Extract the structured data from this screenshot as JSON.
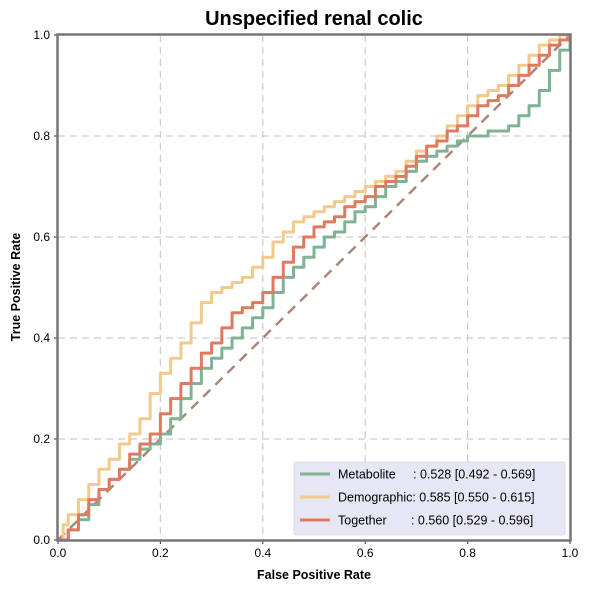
{
  "chart_data": {
    "type": "line",
    "title": "Unspecified renal colic",
    "xlabel": "False Positive Rate",
    "ylabel": "True Positive Rate",
    "xlim": [
      0,
      1
    ],
    "ylim": [
      0,
      1
    ],
    "xticks": [
      "0.0",
      "0.2",
      "0.4",
      "0.6",
      "0.8",
      "1.0"
    ],
    "yticks": [
      "0.0",
      "0.2",
      "0.4",
      "0.6",
      "0.8",
      "1.0"
    ],
    "grid": true,
    "legend_position": "bottom-right",
    "reference_line": {
      "color": "#A9877A",
      "style": "dashed",
      "x": [
        0,
        1
      ],
      "y": [
        0,
        1
      ]
    },
    "series": [
      {
        "name": "Metabolite",
        "legend_label": "Metabolite     : 0.528 [0.492 - 0.569]",
        "color": "#7FB394",
        "x": [
          0,
          0.02,
          0.04,
          0.06,
          0.08,
          0.1,
          0.12,
          0.14,
          0.16,
          0.18,
          0.2,
          0.22,
          0.24,
          0.26,
          0.28,
          0.3,
          0.32,
          0.34,
          0.36,
          0.38,
          0.4,
          0.42,
          0.44,
          0.46,
          0.48,
          0.5,
          0.52,
          0.54,
          0.56,
          0.58,
          0.6,
          0.62,
          0.64,
          0.66,
          0.68,
          0.7,
          0.72,
          0.74,
          0.76,
          0.78,
          0.8,
          0.82,
          0.84,
          0.86,
          0.88,
          0.9,
          0.92,
          0.94,
          0.96,
          0.98,
          1.0
        ],
        "y": [
          0,
          0.02,
          0.04,
          0.07,
          0.1,
          0.12,
          0.14,
          0.16,
          0.18,
          0.19,
          0.21,
          0.24,
          0.28,
          0.31,
          0.34,
          0.36,
          0.38,
          0.4,
          0.42,
          0.44,
          0.46,
          0.49,
          0.52,
          0.54,
          0.56,
          0.58,
          0.6,
          0.61,
          0.63,
          0.65,
          0.66,
          0.68,
          0.7,
          0.71,
          0.73,
          0.75,
          0.76,
          0.77,
          0.78,
          0.79,
          0.8,
          0.8,
          0.81,
          0.81,
          0.82,
          0.84,
          0.86,
          0.89,
          0.93,
          0.97,
          1.0
        ]
      },
      {
        "name": "Demographic",
        "legend_label": "Demographic: 0.585 [0.550 - 0.615]",
        "color": "#F2CA8B",
        "x": [
          0,
          0.01,
          0.02,
          0.04,
          0.06,
          0.08,
          0.1,
          0.12,
          0.14,
          0.16,
          0.18,
          0.2,
          0.22,
          0.24,
          0.26,
          0.28,
          0.3,
          0.32,
          0.34,
          0.36,
          0.38,
          0.4,
          0.42,
          0.44,
          0.46,
          0.48,
          0.5,
          0.52,
          0.54,
          0.56,
          0.58,
          0.6,
          0.62,
          0.64,
          0.66,
          0.68,
          0.7,
          0.72,
          0.74,
          0.76,
          0.78,
          0.8,
          0.82,
          0.84,
          0.86,
          0.88,
          0.9,
          0.92,
          0.94,
          0.96,
          0.98,
          1.0
        ],
        "y": [
          0,
          0.03,
          0.05,
          0.08,
          0.11,
          0.14,
          0.16,
          0.19,
          0.21,
          0.24,
          0.29,
          0.33,
          0.36,
          0.39,
          0.43,
          0.47,
          0.49,
          0.5,
          0.51,
          0.52,
          0.54,
          0.56,
          0.59,
          0.61,
          0.63,
          0.64,
          0.65,
          0.66,
          0.67,
          0.68,
          0.69,
          0.7,
          0.71,
          0.72,
          0.73,
          0.75,
          0.77,
          0.78,
          0.8,
          0.82,
          0.84,
          0.86,
          0.88,
          0.89,
          0.9,
          0.92,
          0.94,
          0.96,
          0.98,
          0.99,
          1.0,
          1.0
        ]
      },
      {
        "name": "Together",
        "legend_label": "Together       : 0.560 [0.529 - 0.596]",
        "color": "#E07A5F",
        "x": [
          0,
          0.02,
          0.04,
          0.06,
          0.08,
          0.1,
          0.12,
          0.14,
          0.16,
          0.18,
          0.2,
          0.22,
          0.24,
          0.26,
          0.28,
          0.3,
          0.32,
          0.34,
          0.36,
          0.38,
          0.4,
          0.42,
          0.44,
          0.46,
          0.48,
          0.5,
          0.52,
          0.54,
          0.56,
          0.58,
          0.6,
          0.62,
          0.64,
          0.66,
          0.68,
          0.7,
          0.72,
          0.74,
          0.76,
          0.78,
          0.8,
          0.82,
          0.84,
          0.86,
          0.88,
          0.9,
          0.92,
          0.94,
          0.96,
          0.98,
          1.0
        ],
        "y": [
          0,
          0.02,
          0.05,
          0.08,
          0.1,
          0.12,
          0.14,
          0.17,
          0.19,
          0.21,
          0.25,
          0.28,
          0.31,
          0.34,
          0.37,
          0.39,
          0.42,
          0.45,
          0.46,
          0.47,
          0.49,
          0.52,
          0.55,
          0.58,
          0.6,
          0.62,
          0.63,
          0.64,
          0.66,
          0.67,
          0.68,
          0.7,
          0.71,
          0.72,
          0.74,
          0.76,
          0.78,
          0.79,
          0.81,
          0.82,
          0.84,
          0.86,
          0.87,
          0.88,
          0.9,
          0.92,
          0.94,
          0.96,
          0.98,
          0.99,
          1.0
        ]
      }
    ]
  }
}
